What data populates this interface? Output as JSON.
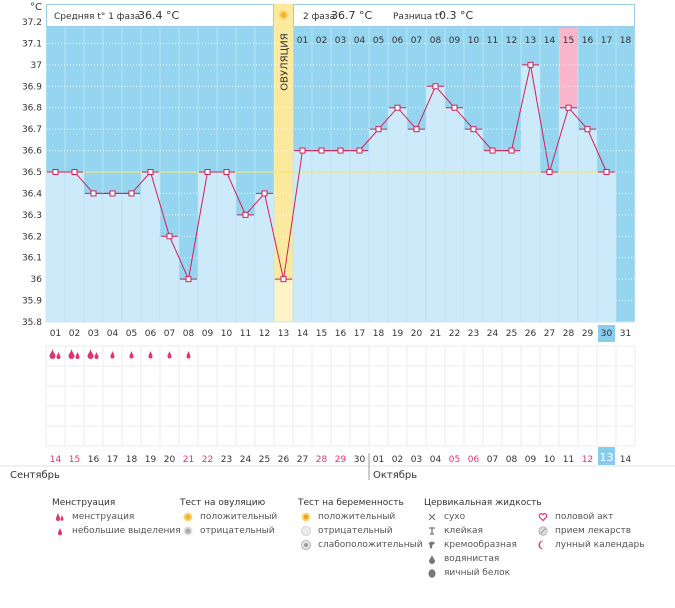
{
  "chart_data": {
    "type": "line",
    "title": "",
    "y_unit": "°C",
    "ylim": [
      35.8,
      37.2
    ],
    "y_ticks": [
      "35.8",
      "35.9",
      "36",
      "36.1",
      "36.2",
      "36.3",
      "36.4",
      "36.5",
      "36.6",
      "36.7",
      "36.8",
      "36.9",
      "37",
      "37.1",
      "37.2"
    ],
    "cycle_days": [
      "01",
      "02",
      "03",
      "04",
      "05",
      "06",
      "07",
      "08",
      "09",
      "10",
      "11",
      "12",
      "13",
      "14",
      "15",
      "16",
      "17",
      "18",
      "19",
      "20",
      "21",
      "22",
      "23",
      "24",
      "25",
      "26",
      "27",
      "28",
      "29",
      "30",
      "31"
    ],
    "temperatures": [
      36.5,
      36.5,
      36.4,
      36.4,
      36.4,
      36.5,
      36.2,
      36.0,
      36.5,
      36.5,
      36.3,
      36.4,
      36.0,
      36.6,
      36.6,
      36.6,
      36.6,
      36.7,
      36.8,
      36.7,
      36.9,
      36.8,
      36.7,
      36.6,
      36.6,
      37.0,
      36.5,
      36.8,
      36.7,
      36.5,
      null
    ],
    "coverline": 36.5,
    "ovulation_day": 13,
    "ovulation_label": "ОВУЛЯЦИЯ",
    "phase1": {
      "label": "Средняя t° 1 фаза",
      "value": "36.4 °C"
    },
    "phase2": {
      "label": "2 фаза",
      "value": "36.7 °C"
    },
    "difference": {
      "label": "Разница t°",
      "value": "0.3 °C"
    },
    "luteal_days": [
      "01",
      "02",
      "03",
      "04",
      "05",
      "06",
      "07",
      "08",
      "09",
      "10",
      "11",
      "12",
      "13",
      "14",
      "15",
      "16",
      "17",
      "18"
    ],
    "luteal_highlight": "15",
    "current_cycle_day": "30",
    "dates": [
      "14",
      "15",
      "16",
      "17",
      "18",
      "19",
      "20",
      "21",
      "22",
      "23",
      "24",
      "25",
      "26",
      "27",
      "28",
      "29",
      "30",
      "01",
      "02",
      "03",
      "04",
      "05",
      "06",
      "07",
      "08",
      "09",
      "10",
      "11",
      "12",
      "13",
      "14"
    ],
    "date_colors": [
      "#e2336b",
      "#e2336b",
      "#333333",
      "#333333",
      "#333333",
      "#333333",
      "#333333",
      "#e2336b",
      "#e2336b",
      "#333333",
      "#333333",
      "#333333",
      "#333333",
      "#333333",
      "#e2336b",
      "#e2336b",
      "#333333",
      "#333333",
      "#333333",
      "#333333",
      "#333333",
      "#e2336b",
      "#e2336b",
      "#333333",
      "#333333",
      "#333333",
      "#333333",
      "#333333",
      "#e2336b",
      "#333333",
      "#333333"
    ],
    "current_date": "13",
    "month_left": "Сентябрь",
    "month_right": "Октябрь",
    "menstruation": [
      "heavy",
      "heavy",
      "heavy",
      "light",
      "light",
      "light",
      "light",
      "light"
    ],
    "colors": {
      "bar": "#cdeafa",
      "bar_edge": "#93cbe8",
      "background_band": "#95d5f0",
      "line": "#d0205a",
      "marker": "#d0205a",
      "coverline": "#f3e37a",
      "ovulation": "#fbe99d",
      "highlight": "#f9b5cc",
      "current": "#89cdee"
    }
  },
  "legend": {
    "menstruation": {
      "title": "Менструация",
      "items": [
        "менструация",
        "небольшие выделения"
      ]
    },
    "ovulation_test": {
      "title": "Тест на овуляцию",
      "items": [
        "положительный",
        "отрицательный"
      ]
    },
    "pregnancy_test": {
      "title": "Тест на беременность",
      "items": [
        "положительный",
        "отрицательный",
        "слабоположительный"
      ]
    },
    "cervical": {
      "title": "Цервикальная жидкость",
      "items": [
        "сухо",
        "клейкая",
        "кремообразная",
        "водянистая",
        "яичный белок"
      ]
    },
    "other": {
      "items": [
        "половой акт",
        "прием лекарств",
        "лунный календарь"
      ]
    }
  }
}
